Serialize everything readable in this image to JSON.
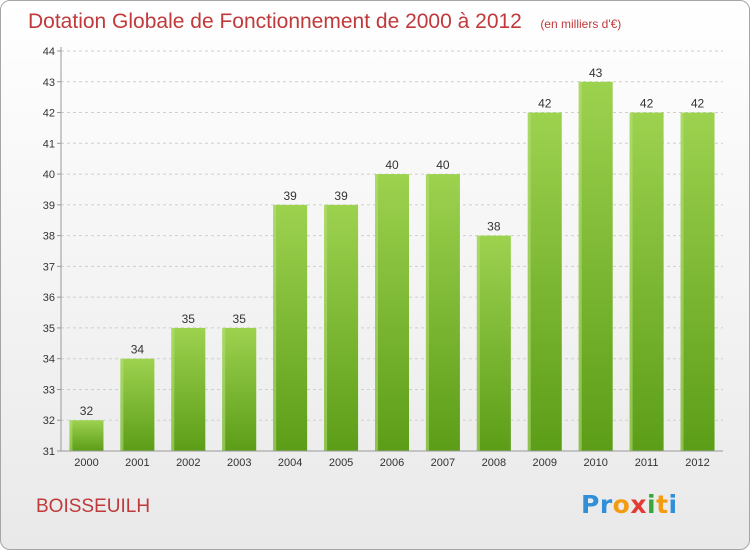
{
  "title": "Dotation Globale de Fonctionnement de 2000 à 2012",
  "subtitle": "(en milliers d'€)",
  "commune": "BOISSEUILH",
  "logo": {
    "letters": [
      "P",
      "r",
      "o",
      "x",
      "i",
      "t",
      "i"
    ],
    "colors": [
      "#2f8fd8",
      "#2f8fd8",
      "#f39c12",
      "#e53935",
      "#3aa63a",
      "#f39c12",
      "#2f8fd8"
    ]
  },
  "colors": {
    "bar_top": "#9dd24f",
    "bar_bottom": "#5c9d18",
    "grid": "#cfcfcf",
    "title": "#c0393b",
    "label": "#333333"
  },
  "chart_data": {
    "type": "bar",
    "categories": [
      "2000",
      "2001",
      "2002",
      "2003",
      "2004",
      "2005",
      "2006",
      "2007",
      "2008",
      "2009",
      "2010",
      "2011",
      "2012"
    ],
    "values": [
      32,
      34,
      35,
      35,
      39,
      39,
      40,
      40,
      38,
      42,
      43,
      42,
      42
    ],
    "y_ticks": [
      "31",
      "32",
      "33",
      "34",
      "35",
      "36",
      "37",
      "38",
      "39",
      "40",
      "41",
      "42",
      "43",
      "44"
    ],
    "ylim": [
      31,
      44
    ],
    "grid": true,
    "xlabel": "",
    "ylabel": ""
  }
}
